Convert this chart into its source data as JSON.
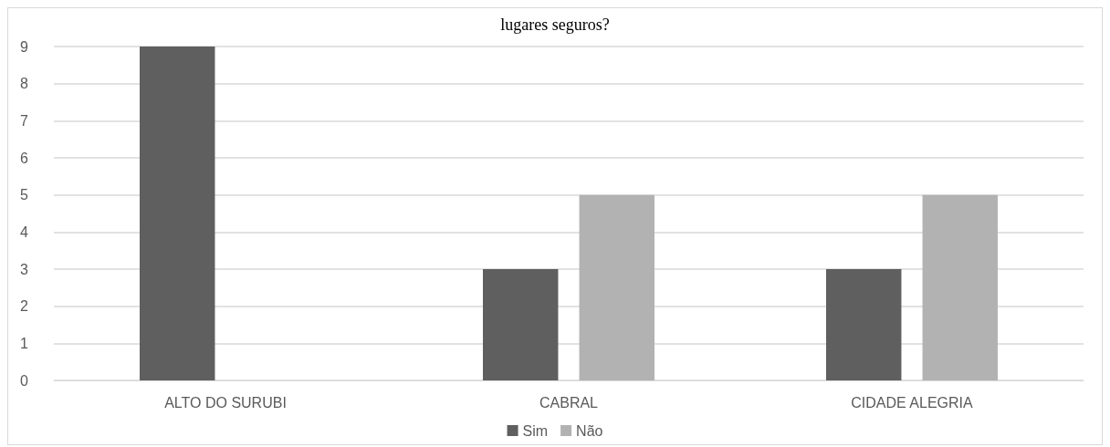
{
  "chart_data": {
    "type": "bar",
    "title": "lugares seguros?",
    "categories": [
      "ALTO DO SURUBI",
      "CABRAL",
      "CIDADE ALEGRIA"
    ],
    "series": [
      {
        "name": "Sim",
        "color": "#5f5f5f",
        "values": [
          9,
          3,
          3
        ]
      },
      {
        "name": "Não",
        "color": "#b2b2b2",
        "values": [
          null,
          5,
          5
        ]
      }
    ],
    "ylim": [
      0,
      9
    ],
    "yticks": [
      0,
      1,
      2,
      3,
      4,
      5,
      6,
      7,
      8,
      9
    ],
    "grid": "y",
    "legend": "bottom"
  }
}
